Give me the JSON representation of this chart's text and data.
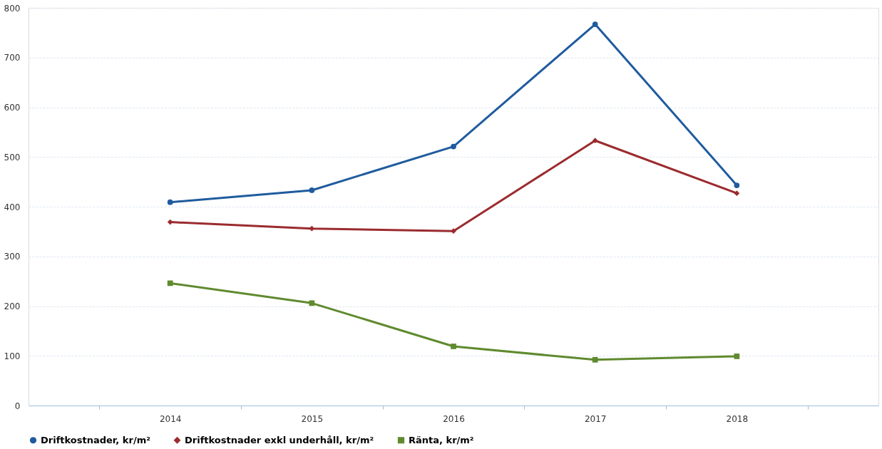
{
  "chart_data": {
    "type": "line",
    "categories": [
      "2014",
      "2015",
      "2016",
      "2017",
      "2018"
    ],
    "series": [
      {
        "name": "Driftkostnader, kr/m²",
        "color": "#1f5b9e",
        "marker": "circle",
        "values": [
          409,
          433,
          521,
          767,
          443
        ]
      },
      {
        "name": "Driftkostnader exkl underhåll, kr/m²",
        "color": "#9b2b2e",
        "marker": "diamond",
        "values": [
          369,
          356,
          351,
          533,
          427
        ]
      },
      {
        "name": "Ränta, kr/m²",
        "color": "#5f8a2e",
        "marker": "square",
        "values": [
          246,
          206,
          119,
          92,
          99
        ]
      }
    ],
    "ylim": [
      0,
      800
    ],
    "yticks": [
      0,
      100,
      200,
      300,
      400,
      500,
      600,
      700,
      800
    ],
    "grid": "y",
    "legend": "bottom",
    "line_style": "solid"
  }
}
